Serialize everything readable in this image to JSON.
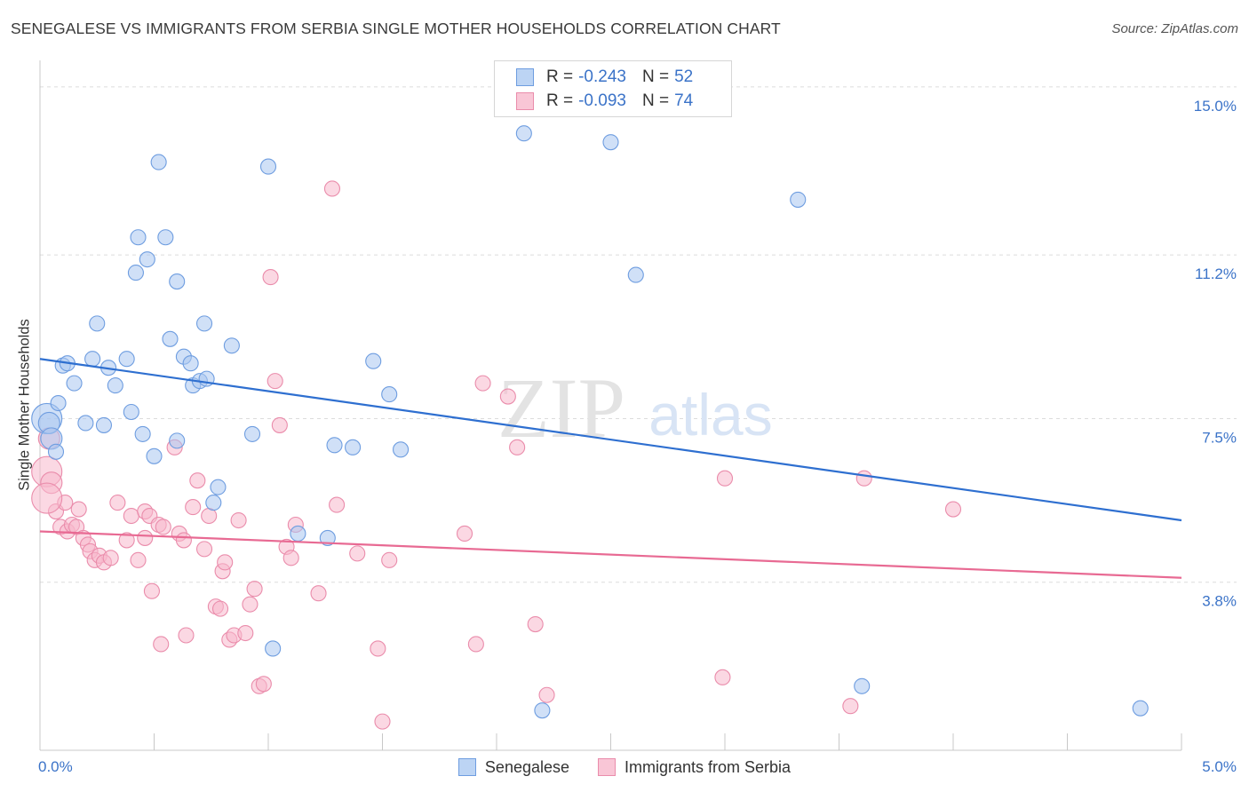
{
  "title": "SENEGALESE VS IMMIGRANTS FROM SERBIA SINGLE MOTHER HOUSEHOLDS CORRELATION CHART",
  "source": "Source: ZipAtlas.com",
  "watermark": {
    "zip": "ZIP",
    "atlas": "atlas"
  },
  "legend": {
    "r_label": "R =",
    "n_label": "N =",
    "rows": [
      {
        "r": "-0.243",
        "n": "52",
        "fill": "#bcd4f4",
        "stroke": "#6e9de0"
      },
      {
        "r": "-0.093",
        "n": "74",
        "fill": "#f9c6d6",
        "stroke": "#ea8cab"
      }
    ]
  },
  "colors": {
    "blue_fill": "#a9c7f0",
    "blue_stroke": "#6e9de0",
    "blue_line": "#2e6fd0",
    "pink_fill": "#f7b8cc",
    "pink_stroke": "#ea8cab",
    "pink_line": "#e86a93",
    "tick_label": "#3b73c8",
    "grid": "#dcdcdc"
  },
  "chart_data": {
    "type": "scatter",
    "title": "SENEGALESE VS IMMIGRANTS FROM SERBIA SINGLE MOTHER HOUSEHOLDS CORRELATION CHART",
    "xlabel": "",
    "ylabel": "Single Mother Households",
    "xlim": [
      0,
      5.0
    ],
    "ylim": [
      0,
      15.4
    ],
    "x_tick_labels": [
      "0.0%",
      "5.0%"
    ],
    "y_ticks": [
      3.8,
      7.5,
      11.2,
      15.0
    ],
    "y_tick_labels": [
      "3.8%",
      "7.5%",
      "11.2%",
      "15.0%"
    ],
    "grid": "horizontal dashed",
    "legend_position": "top-center and bottom",
    "series": [
      {
        "name": "Senegalese",
        "color": "#6e9de0",
        "trend": {
          "x": [
            0,
            5.0
          ],
          "y": [
            8.85,
            5.2
          ]
        },
        "points": [
          [
            0.03,
            7.5
          ],
          [
            0.04,
            7.4
          ],
          [
            0.05,
            7.05
          ],
          [
            0.07,
            6.75
          ],
          [
            0.08,
            7.85
          ],
          [
            0.1,
            8.7
          ],
          [
            0.12,
            8.75
          ],
          [
            0.15,
            8.3
          ],
          [
            0.2,
            7.4
          ],
          [
            0.28,
            7.35
          ],
          [
            0.23,
            8.85
          ],
          [
            0.25,
            9.65
          ],
          [
            0.3,
            8.65
          ],
          [
            0.33,
            8.25
          ],
          [
            0.38,
            8.85
          ],
          [
            0.4,
            7.65
          ],
          [
            0.45,
            7.15
          ],
          [
            0.5,
            6.65
          ],
          [
            0.42,
            10.8
          ],
          [
            0.43,
            11.6
          ],
          [
            0.47,
            11.1
          ],
          [
            0.52,
            13.3
          ],
          [
            0.55,
            11.6
          ],
          [
            0.57,
            9.3
          ],
          [
            0.6,
            10.6
          ],
          [
            0.6,
            7.0
          ],
          [
            0.63,
            8.9
          ],
          [
            0.66,
            8.75
          ],
          [
            0.67,
            8.25
          ],
          [
            0.7,
            8.35
          ],
          [
            0.73,
            8.4
          ],
          [
            0.72,
            9.65
          ],
          [
            0.76,
            5.6
          ],
          [
            0.78,
            5.95
          ],
          [
            0.84,
            9.15
          ],
          [
            0.93,
            7.15
          ],
          [
            1.02,
            2.3
          ],
          [
            1.0,
            13.2
          ],
          [
            1.13,
            4.9
          ],
          [
            1.26,
            4.8
          ],
          [
            1.29,
            6.9
          ],
          [
            1.37,
            6.85
          ],
          [
            1.46,
            8.8
          ],
          [
            1.53,
            8.05
          ],
          [
            1.58,
            6.8
          ],
          [
            2.12,
            13.95
          ],
          [
            2.2,
            0.9
          ],
          [
            2.5,
            13.75
          ],
          [
            2.61,
            10.75
          ],
          [
            3.32,
            12.45
          ],
          [
            3.6,
            1.45
          ],
          [
            4.82,
            0.95
          ]
        ]
      },
      {
        "name": "Immigrants from Serbia",
        "color": "#ea8cab",
        "trend": {
          "x": [
            0,
            5.0
          ],
          "y": [
            4.95,
            3.9
          ]
        },
        "points": [
          [
            0.03,
            6.3
          ],
          [
            0.04,
            7.05
          ],
          [
            0.05,
            6.05
          ],
          [
            0.07,
            5.4
          ],
          [
            0.09,
            5.05
          ],
          [
            0.11,
            5.6
          ],
          [
            0.12,
            4.95
          ],
          [
            0.14,
            5.1
          ],
          [
            0.16,
            5.05
          ],
          [
            0.17,
            5.45
          ],
          [
            0.19,
            4.8
          ],
          [
            0.21,
            4.65
          ],
          [
            0.22,
            4.5
          ],
          [
            0.24,
            4.3
          ],
          [
            0.26,
            4.4
          ],
          [
            0.28,
            4.25
          ],
          [
            0.31,
            4.35
          ],
          [
            0.34,
            5.6
          ],
          [
            0.38,
            4.75
          ],
          [
            0.4,
            5.3
          ],
          [
            0.43,
            4.3
          ],
          [
            0.46,
            4.8
          ],
          [
            0.46,
            5.4
          ],
          [
            0.48,
            5.3
          ],
          [
            0.49,
            3.6
          ],
          [
            0.52,
            5.1
          ],
          [
            0.54,
            5.05
          ],
          [
            0.53,
            2.4
          ],
          [
            0.59,
            6.85
          ],
          [
            0.61,
            4.9
          ],
          [
            0.63,
            4.75
          ],
          [
            0.64,
            2.6
          ],
          [
            0.67,
            5.5
          ],
          [
            0.69,
            6.1
          ],
          [
            0.72,
            4.55
          ],
          [
            0.74,
            5.3
          ],
          [
            0.77,
            3.25
          ],
          [
            0.79,
            3.2
          ],
          [
            0.8,
            4.05
          ],
          [
            0.81,
            4.25
          ],
          [
            0.83,
            2.5
          ],
          [
            0.85,
            2.6
          ],
          [
            0.87,
            5.2
          ],
          [
            0.9,
            2.65
          ],
          [
            0.92,
            3.3
          ],
          [
            0.94,
            3.65
          ],
          [
            0.96,
            1.45
          ],
          [
            0.98,
            1.5
          ],
          [
            1.01,
            10.7
          ],
          [
            1.03,
            8.35
          ],
          [
            1.05,
            7.35
          ],
          [
            1.08,
            4.6
          ],
          [
            1.1,
            4.35
          ],
          [
            1.12,
            5.1
          ],
          [
            1.22,
            3.55
          ],
          [
            1.28,
            12.7
          ],
          [
            1.3,
            5.55
          ],
          [
            1.39,
            4.45
          ],
          [
            1.48,
            2.3
          ],
          [
            1.5,
            0.65
          ],
          [
            1.53,
            4.3
          ],
          [
            1.86,
            4.9
          ],
          [
            1.91,
            2.4
          ],
          [
            1.94,
            8.3
          ],
          [
            2.05,
            8.0
          ],
          [
            2.09,
            6.85
          ],
          [
            2.17,
            2.85
          ],
          [
            2.22,
            1.25
          ],
          [
            2.99,
            1.65
          ],
          [
            3.0,
            6.15
          ],
          [
            3.55,
            1.0
          ],
          [
            3.61,
            6.15
          ],
          [
            4.0,
            5.45
          ],
          [
            0.03,
            5.7
          ]
        ]
      }
    ]
  },
  "bottom_legend": [
    {
      "label": "Senegalese",
      "fill": "#bcd4f4",
      "stroke": "#6e9de0"
    },
    {
      "label": "Immigrants from Serbia",
      "fill": "#f9c6d6",
      "stroke": "#ea8cab"
    }
  ]
}
